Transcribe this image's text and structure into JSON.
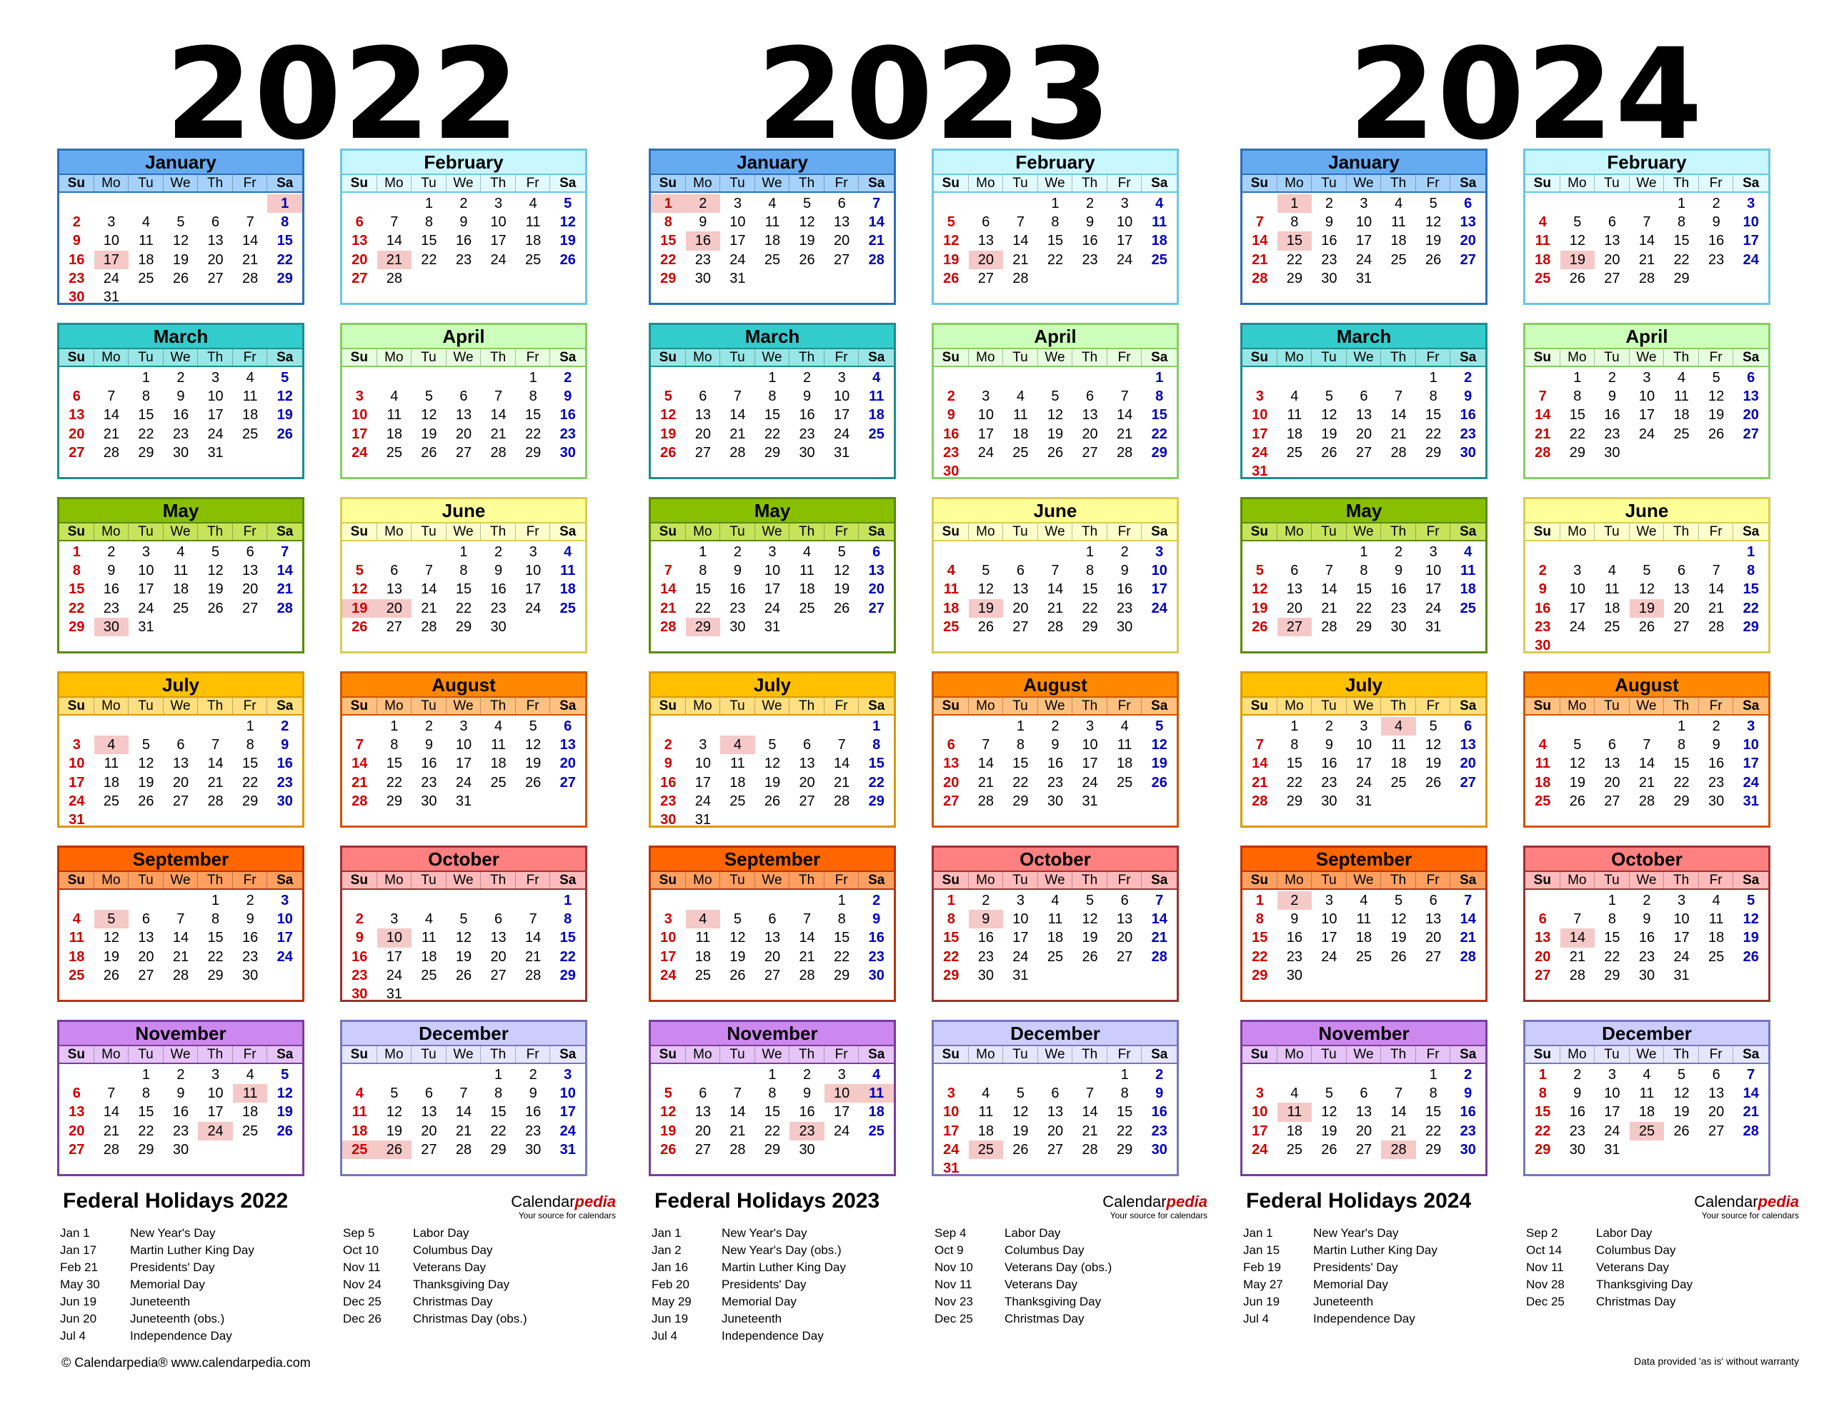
{
  "dow_labels": [
    "Su",
    "Mo",
    "Tu",
    "We",
    "Th",
    "Fr",
    "Sa"
  ],
  "month_names": [
    "January",
    "February",
    "March",
    "April",
    "May",
    "June",
    "July",
    "August",
    "September",
    "October",
    "November",
    "December"
  ],
  "month_colors": [
    {
      "head": "#66aaf2",
      "dow": "#a6d2fa",
      "border": "#2d6eb8"
    },
    {
      "head": "#c8f7ff",
      "dow": "#e2fbff",
      "border": "#6ec6e0"
    },
    {
      "head": "#33cccc",
      "dow": "#99e6e6",
      "border": "#1c8e8e"
    },
    {
      "head": "#ccffbb",
      "dow": "#e6ffdd",
      "border": "#88cc66"
    },
    {
      "head": "#88c000",
      "dow": "#c6e45a",
      "border": "#5a8a00"
    },
    {
      "head": "#ffff99",
      "dow": "#ffffcc",
      "border": "#d8cc55"
    },
    {
      "head": "#ffc000",
      "dow": "#ffe080",
      "border": "#d89a00"
    },
    {
      "head": "#ff8800",
      "dow": "#ffc080",
      "border": "#cc5500"
    },
    {
      "head": "#ff6600",
      "dow": "#ffa060",
      "border": "#bb3300"
    },
    {
      "head": "#ff8080",
      "dow": "#ffbbbb",
      "border": "#993333"
    },
    {
      "head": "#cc88ee",
      "dow": "#e6c4f7",
      "border": "#7a3d99"
    },
    {
      "head": "#ccccff",
      "dow": "#e6e6ff",
      "border": "#7777bb"
    }
  ],
  "years": [
    {
      "year": "2022",
      "holiday_title": "Federal Holidays 2022",
      "brand_prefix": "Calendar",
      "brand_suffix": "pedia",
      "brand_tag": "Your source for calendars",
      "holidays": [
        {
          "m": 1,
          "d": 1
        },
        {
          "m": 1,
          "d": 17
        },
        {
          "m": 2,
          "d": 21
        },
        {
          "m": 5,
          "d": 30
        },
        {
          "m": 6,
          "d": 19
        },
        {
          "m": 6,
          "d": 20
        },
        {
          "m": 7,
          "d": 4
        },
        {
          "m": 9,
          "d": 5
        },
        {
          "m": 10,
          "d": 10
        },
        {
          "m": 11,
          "d": 11
        },
        {
          "m": 11,
          "d": 24
        },
        {
          "m": 12,
          "d": 25
        },
        {
          "m": 12,
          "d": 26
        }
      ],
      "holiday_list_left": [
        {
          "date": "Jan 1",
          "name": "New Year's Day"
        },
        {
          "date": "Jan 17",
          "name": "Martin Luther King Day"
        },
        {
          "date": "Feb 21",
          "name": "Presidents' Day"
        },
        {
          "date": "May 30",
          "name": "Memorial Day"
        },
        {
          "date": "Jun 19",
          "name": "Juneteenth"
        },
        {
          "date": "Jun 20",
          "name": "Juneteenth (obs.)"
        },
        {
          "date": "Jul 4",
          "name": "Independence Day"
        }
      ],
      "holiday_list_right": [
        {
          "date": "Sep 5",
          "name": "Labor Day"
        },
        {
          "date": "Oct 10",
          "name": "Columbus Day"
        },
        {
          "date": "Nov 11",
          "name": "Veterans Day"
        },
        {
          "date": "Nov 24",
          "name": "Thanksgiving Day"
        },
        {
          "date": "Dec 25",
          "name": "Christmas Day"
        },
        {
          "date": "Dec 26",
          "name": "Christmas Day (obs.)"
        }
      ]
    },
    {
      "year": "2023",
      "holiday_title": "Federal Holidays 2023",
      "brand_prefix": "Calendar",
      "brand_suffix": "pedia",
      "brand_tag": "Your source for calendars",
      "holidays": [
        {
          "m": 1,
          "d": 1
        },
        {
          "m": 1,
          "d": 2
        },
        {
          "m": 1,
          "d": 16
        },
        {
          "m": 2,
          "d": 20
        },
        {
          "m": 5,
          "d": 29
        },
        {
          "m": 6,
          "d": 19
        },
        {
          "m": 7,
          "d": 4
        },
        {
          "m": 9,
          "d": 4
        },
        {
          "m": 10,
          "d": 9
        },
        {
          "m": 11,
          "d": 10
        },
        {
          "m": 11,
          "d": 11
        },
        {
          "m": 11,
          "d": 23
        },
        {
          "m": 12,
          "d": 25
        }
      ],
      "holiday_list_left": [
        {
          "date": "Jan 1",
          "name": "New Year's Day"
        },
        {
          "date": "Jan 2",
          "name": "New Year's Day (obs.)"
        },
        {
          "date": "Jan 16",
          "name": "Martin Luther King Day"
        },
        {
          "date": "Feb 20",
          "name": "Presidents' Day"
        },
        {
          "date": "May 29",
          "name": "Memorial Day"
        },
        {
          "date": "Jun 19",
          "name": "Juneteenth"
        },
        {
          "date": "Jul 4",
          "name": "Independence Day"
        }
      ],
      "holiday_list_right": [
        {
          "date": "Sep 4",
          "name": "Labor Day"
        },
        {
          "date": "Oct 9",
          "name": "Columbus Day"
        },
        {
          "date": "Nov 10",
          "name": "Veterans Day (obs.)"
        },
        {
          "date": "Nov 11",
          "name": "Veterans Day"
        },
        {
          "date": "Nov 23",
          "name": "Thanksgiving Day"
        },
        {
          "date": "Dec 25",
          "name": "Christmas Day"
        }
      ]
    },
    {
      "year": "2024",
      "holiday_title": "Federal Holidays 2024",
      "brand_prefix": "Calendar",
      "brand_suffix": "pedia",
      "brand_tag": "Your source for calendars",
      "holidays": [
        {
          "m": 1,
          "d": 1
        },
        {
          "m": 1,
          "d": 15
        },
        {
          "m": 2,
          "d": 19
        },
        {
          "m": 5,
          "d": 27
        },
        {
          "m": 6,
          "d": 19
        },
        {
          "m": 7,
          "d": 4
        },
        {
          "m": 9,
          "d": 2
        },
        {
          "m": 10,
          "d": 14
        },
        {
          "m": 11,
          "d": 11
        },
        {
          "m": 11,
          "d": 28
        },
        {
          "m": 12,
          "d": 25
        }
      ],
      "holiday_list_left": [
        {
          "date": "Jan 1",
          "name": "New Year's Day"
        },
        {
          "date": "Jan 15",
          "name": "Martin Luther King Day"
        },
        {
          "date": "Feb 19",
          "name": "Presidents' Day"
        },
        {
          "date": "May 27",
          "name": "Memorial Day"
        },
        {
          "date": "Jun 19",
          "name": "Juneteenth"
        },
        {
          "date": "Jul 4",
          "name": "Independence Day"
        }
      ],
      "holiday_list_right": [
        {
          "date": "Sep 2",
          "name": "Labor Day"
        },
        {
          "date": "Oct 14",
          "name": "Columbus Day"
        },
        {
          "date": "Nov 11",
          "name": "Veterans Day"
        },
        {
          "date": "Nov 28",
          "name": "Thanksgiving Day"
        },
        {
          "date": "Dec 25",
          "name": "Christmas Day"
        }
      ]
    }
  ],
  "footer": {
    "copyright": "© Calendarpedia®   www.calendarpedia.com",
    "disclaimer": "Data provided 'as is' without warranty"
  }
}
